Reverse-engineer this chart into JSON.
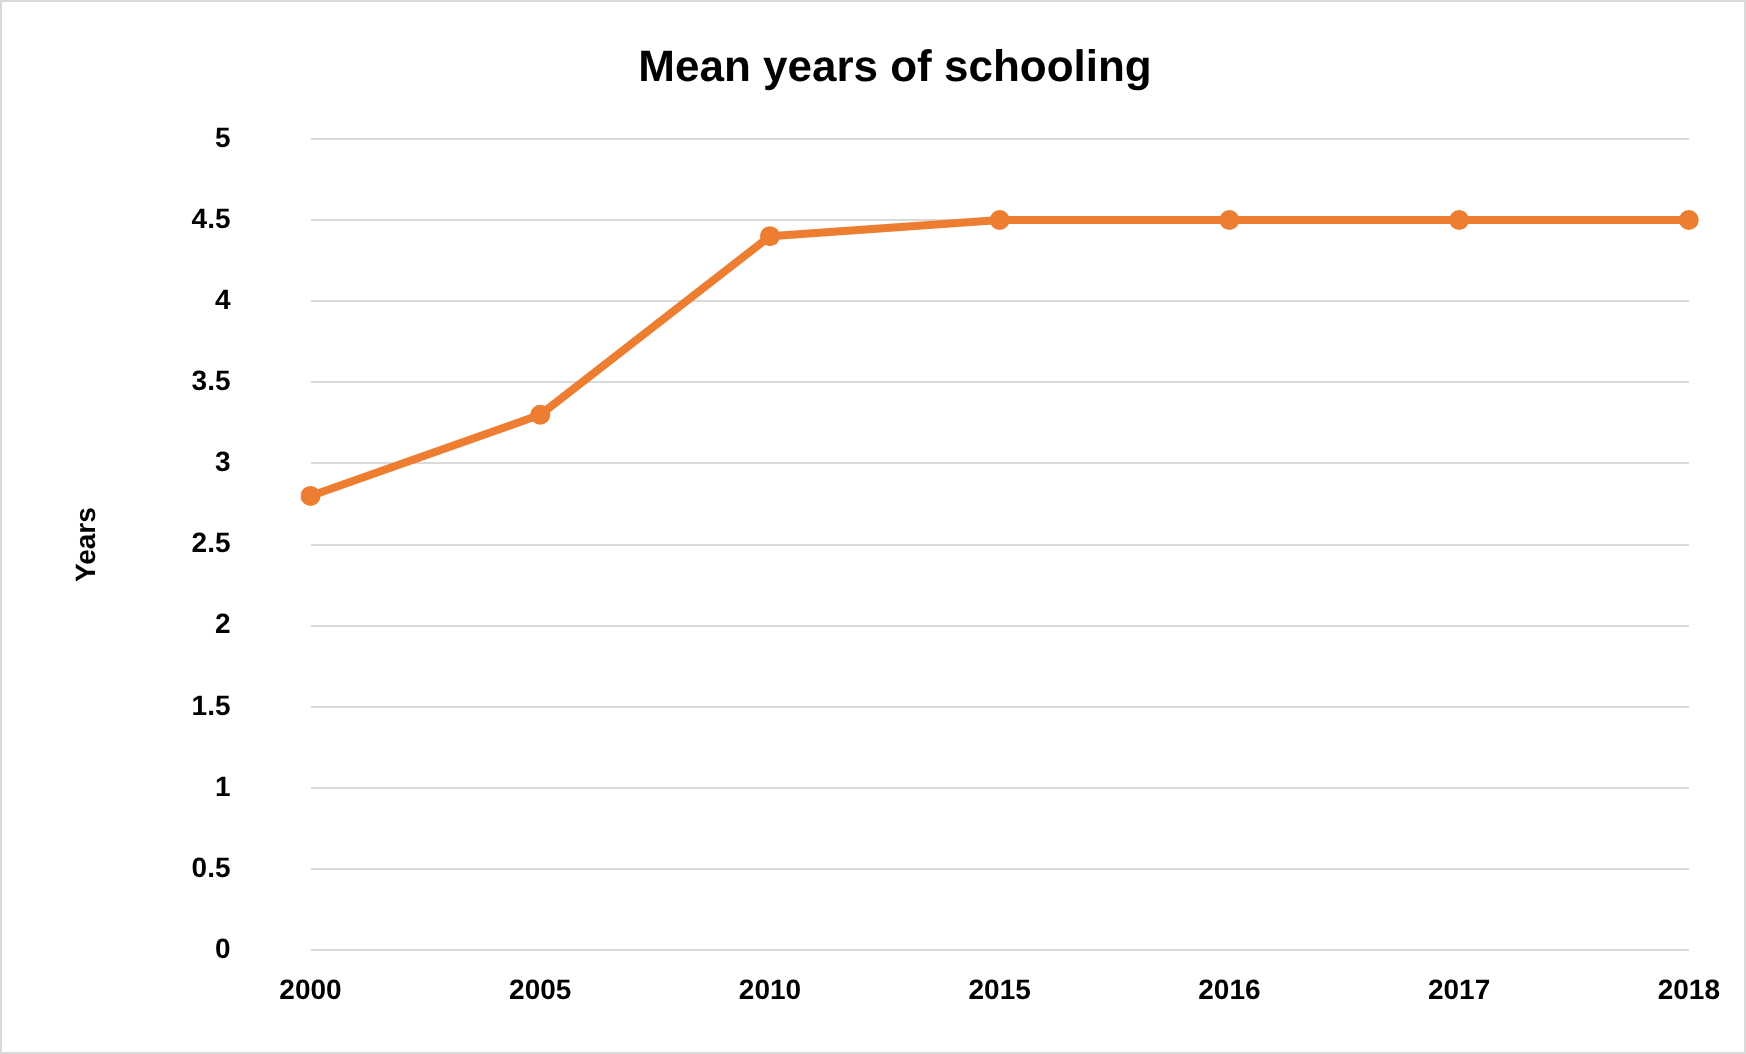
{
  "chart_data": {
    "type": "line",
    "title": "Mean years of schooling",
    "ylabel": "Years",
    "categories": [
      "2000",
      "2005",
      "2010",
      "2015",
      "2016",
      "2017",
      "2018"
    ],
    "series": [
      {
        "color": "#ed7d31",
        "values": [
          2.8,
          3.3,
          4.4,
          4.5,
          4.5,
          4.5,
          4.5
        ]
      }
    ],
    "ylim": [
      0,
      5
    ],
    "yticks": [
      0,
      0.5,
      1,
      1.5,
      2,
      2.5,
      3,
      3.5,
      4,
      4.5,
      5
    ],
    "grid": "y",
    "legend": false,
    "marker": "circle",
    "line_style": "solid"
  }
}
